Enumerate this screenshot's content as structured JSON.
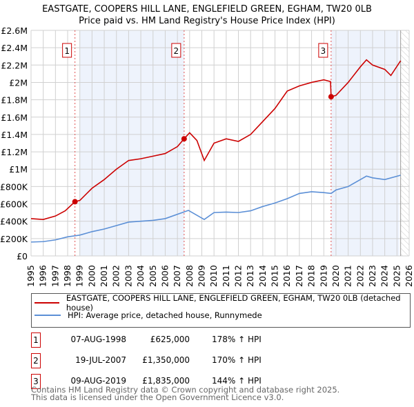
{
  "title": "EASTGATE, COOPERS HILL LANE, ENGLEFIELD GREEN, EGHAM, TW20 0LB",
  "subtitle": "Price paid vs. HM Land Registry's House Price Index (HPI)",
  "chart_data": {
    "type": "line",
    "title": "EASTGATE, COOPERS HILL LANE, ENGLEFIELD GREEN, EGHAM, TW20 0LB",
    "xlim": [
      1995,
      2026
    ],
    "ylim": [
      0,
      2600000
    ],
    "yticks": [
      0,
      200000,
      400000,
      600000,
      800000,
      1000000,
      1200000,
      1400000,
      1600000,
      1800000,
      2000000,
      2200000,
      2400000,
      2600000
    ],
    "ytick_labels": [
      "£0",
      "£200K",
      "£400K",
      "£600K",
      "£800K",
      "£1M",
      "£1.2M",
      "£1.4M",
      "£1.6M",
      "£1.8M",
      "£2M",
      "£2.2M",
      "£2.4M",
      "£2.6M"
    ],
    "xticks": [
      1995,
      1996,
      1997,
      1998,
      1999,
      2000,
      2001,
      2002,
      2003,
      2004,
      2005,
      2006,
      2007,
      2008,
      2009,
      2010,
      2011,
      2012,
      2013,
      2014,
      2015,
      2016,
      2017,
      2018,
      2019,
      2020,
      2021,
      2022,
      2023,
      2024,
      2025,
      2026
    ],
    "grid": true,
    "series": [
      {
        "name": "EASTGATE, COOPERS HILL LANE, ENGLEFIELD GREEN, EGHAM, TW20 0LB (detached house)",
        "color": "#cc0000",
        "x": [
          1995,
          1996,
          1997,
          1997.8,
          1998.6,
          1999,
          2000,
          2001,
          2002,
          2003,
          2004,
          2005,
          2006,
          2007,
          2007.55,
          2008,
          2008.6,
          2009.2,
          2010,
          2011,
          2012,
          2013,
          2014,
          2015,
          2016,
          2017,
          2018,
          2019,
          2019.55,
          2019.6,
          2020,
          2021,
          2022,
          2022.5,
          2023,
          2024,
          2024.5,
          2025.3
        ],
        "y": [
          430000,
          420000,
          460000,
          520000,
          625000,
          640000,
          780000,
          880000,
          1000000,
          1100000,
          1120000,
          1150000,
          1180000,
          1260000,
          1350000,
          1420000,
          1330000,
          1100000,
          1300000,
          1350000,
          1320000,
          1400000,
          1550000,
          1700000,
          1900000,
          1960000,
          2000000,
          2030000,
          2010000,
          1835000,
          1850000,
          2000000,
          2180000,
          2260000,
          2200000,
          2150000,
          2080000,
          2250000
        ]
      },
      {
        "name": "HPI: Average price, detached house, Runnymede",
        "color": "#5b8fd6",
        "x": [
          1995,
          1996,
          1997,
          1998,
          1999,
          2000,
          2001,
          2002,
          2003,
          2004,
          2005,
          2006,
          2007,
          2007.9,
          2009.2,
          2010,
          2011,
          2012,
          2013,
          2014,
          2015,
          2016,
          2017,
          2018,
          2019,
          2019.6,
          2020,
          2021,
          2022,
          2022.5,
          2023,
          2024,
          2025.3
        ],
        "y": [
          160000,
          165000,
          185000,
          220000,
          240000,
          280000,
          310000,
          350000,
          390000,
          400000,
          410000,
          430000,
          480000,
          525000,
          420000,
          500000,
          505000,
          500000,
          520000,
          570000,
          610000,
          660000,
          720000,
          740000,
          730000,
          720000,
          760000,
          800000,
          880000,
          920000,
          900000,
          880000,
          930000
        ]
      }
    ],
    "sales": [
      {
        "label": "1",
        "x": 1998.6,
        "y": 625000,
        "date": "07-AUG-1998",
        "price": "£625,000",
        "hpi": "178% ↑ HPI"
      },
      {
        "label": "2",
        "x": 2007.55,
        "y": 1350000,
        "date": "19-JUL-2007",
        "price": "£1,350,000",
        "hpi": "170% ↑ HPI"
      },
      {
        "label": "3",
        "x": 2019.6,
        "y": 1835000,
        "date": "09-AUG-2019",
        "price": "£1,835,000",
        "hpi": "144% ↑ HPI"
      }
    ],
    "shaded": [
      [
        1998.95,
        2007.55
      ],
      [
        2019.6,
        2025.2
      ]
    ],
    "hatched_from": 2025.3
  },
  "footer": [
    "Contains HM Land Registry data © Crown copyright and database right 2025.",
    "This data is licensed under the Open Government Licence v3.0."
  ]
}
